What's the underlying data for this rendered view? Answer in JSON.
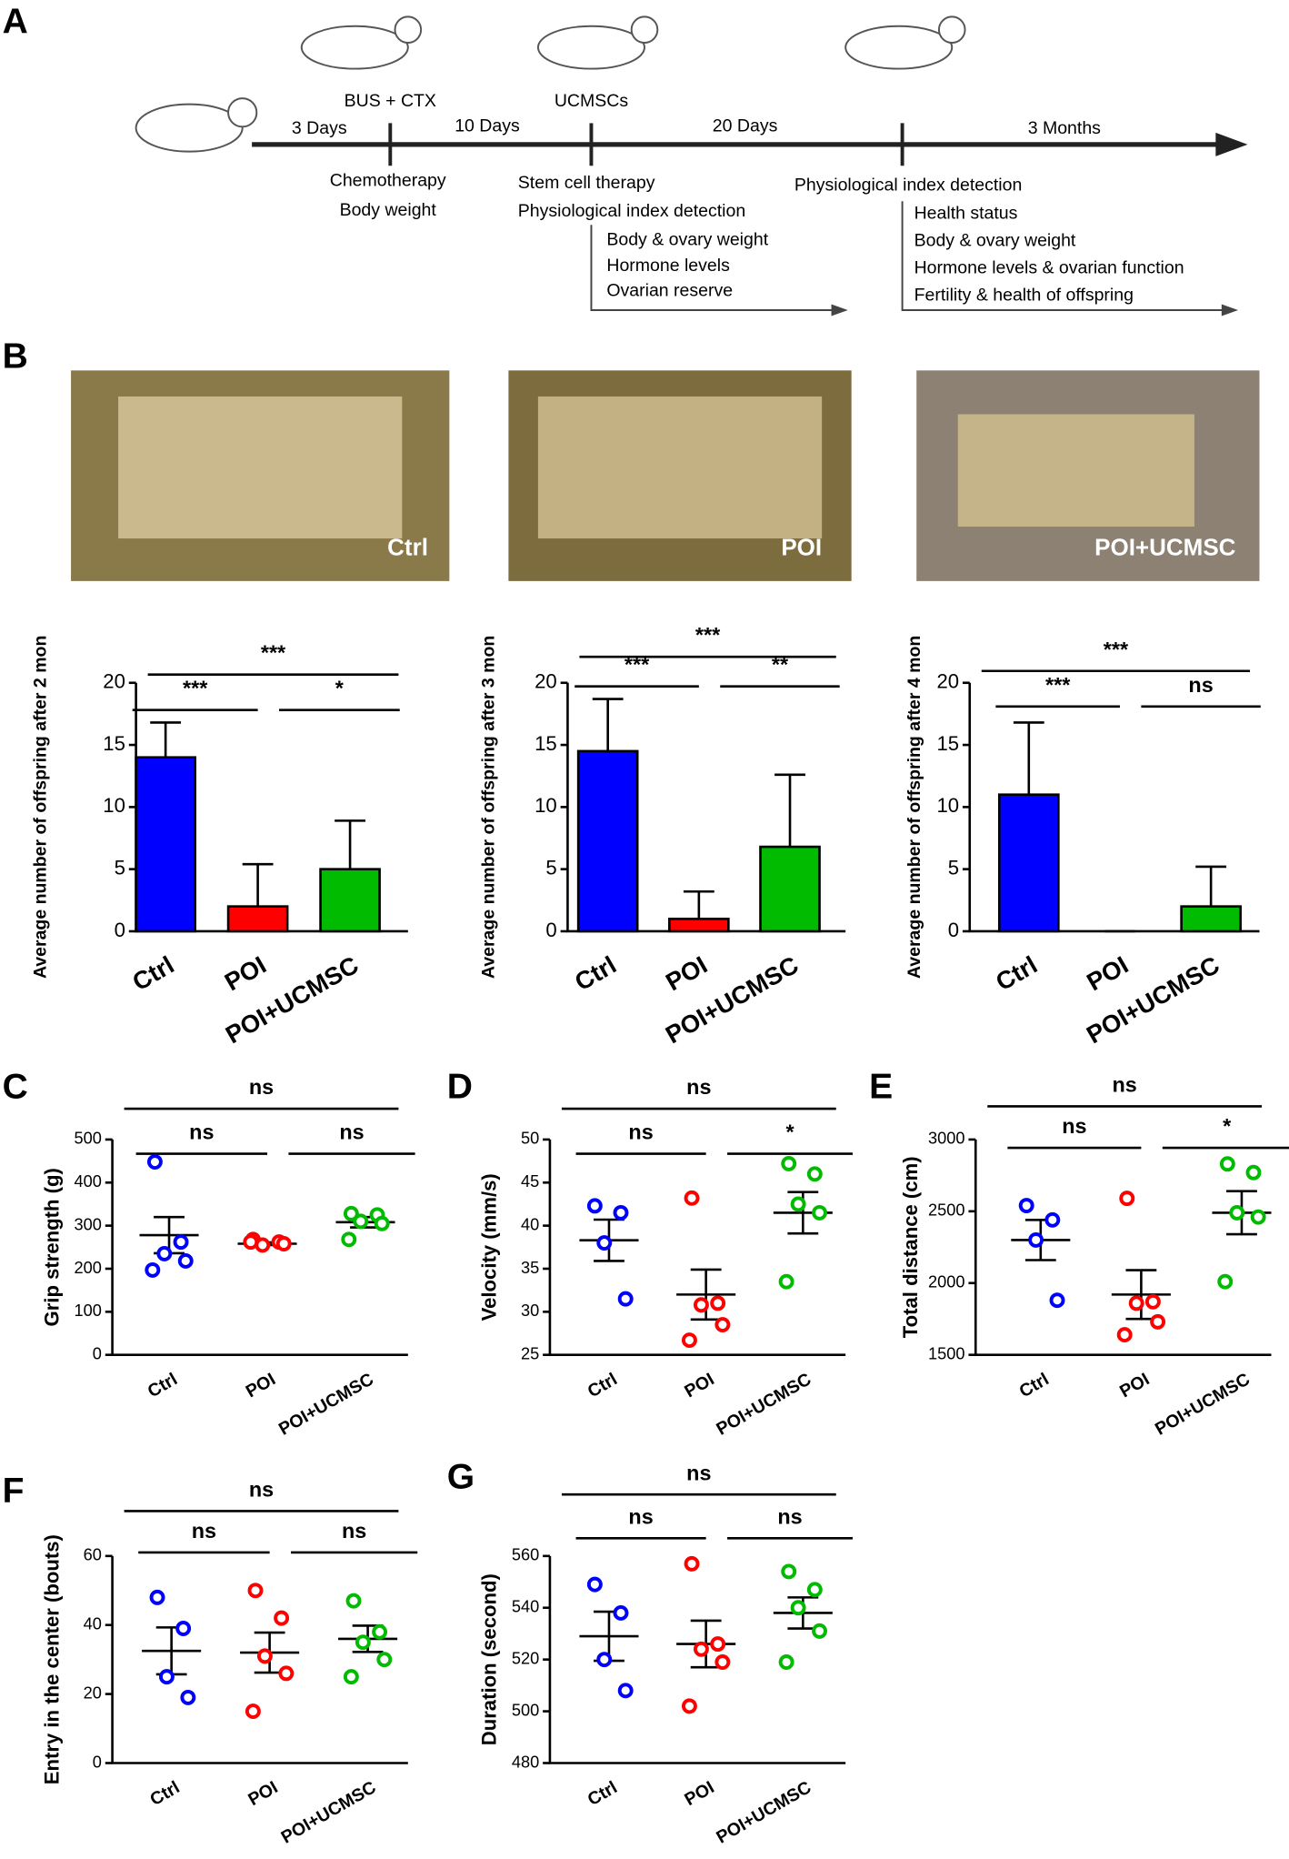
{
  "panel_labels": [
    "A",
    "B",
    "C",
    "D",
    "E",
    "F",
    "G"
  ],
  "timeline": {
    "top_labels": [
      "BUS + CTX",
      "UCMSCs"
    ],
    "intervals": [
      "3 Days",
      "10 Days",
      "20 Days",
      "3 Months"
    ],
    "stage1": [
      "Chemotherapy",
      "Body weight"
    ],
    "stage2": [
      "Stem cell therapy",
      "Physiological index detection"
    ],
    "stage2_items": [
      "Body & ovary weight",
      "Hormone levels",
      "Ovarian reserve"
    ],
    "stage3": [
      "Physiological index detection"
    ],
    "stage3_items": [
      "Health status",
      "Body & ovary weight",
      "Hormone levels & ovarian function",
      "Fertility & health of offspring"
    ]
  },
  "photo_labels": [
    "Ctrl",
    "POI",
    "POI+UCMSC"
  ],
  "chart_data": [
    {
      "type": "bar",
      "ylabel": "Average number of offspring after 2 mon",
      "categories": [
        "Ctrl",
        "POI",
        "POI+UCMSC"
      ],
      "colors": [
        "#0000ff",
        "#ff0000",
        "#00bb00"
      ],
      "values": [
        14,
        2,
        5
      ],
      "errors": [
        2.8,
        3.4,
        3.9
      ],
      "ylim": [
        0,
        20
      ],
      "yticks": [
        0,
        5,
        10,
        15,
        20
      ],
      "significance": [
        "***",
        "***",
        "*"
      ]
    },
    {
      "type": "bar",
      "ylabel": "Average number of offspring after 3 mon",
      "categories": [
        "Ctrl",
        "POI",
        "POI+UCMSC"
      ],
      "colors": [
        "#0000ff",
        "#ff0000",
        "#00bb00"
      ],
      "values": [
        14.5,
        1,
        6.8
      ],
      "errors": [
        4.2,
        2.2,
        5.8
      ],
      "ylim": [
        0,
        20
      ],
      "yticks": [
        0,
        5,
        10,
        15,
        20
      ],
      "significance": [
        "***",
        "***",
        "**"
      ]
    },
    {
      "type": "bar",
      "ylabel": "Average number of offspring after 4 mon",
      "categories": [
        "Ctrl",
        "POI",
        "POI+UCMSC"
      ],
      "colors": [
        "#0000ff",
        "#ff0000",
        "#00bb00"
      ],
      "values": [
        11,
        0,
        2
      ],
      "errors": [
        5.8,
        0,
        3.2
      ],
      "ylim": [
        0,
        20
      ],
      "yticks": [
        0,
        5,
        10,
        15,
        20
      ],
      "significance": [
        "***",
        "***",
        "ns"
      ]
    },
    {
      "type": "strip",
      "ylabel": "Grip strength (g)",
      "categories": [
        "Ctrl",
        "POI",
        "POI+UCMSC"
      ],
      "colors": [
        "#0000ff",
        "#ff0000",
        "#00bb00"
      ],
      "points": [
        [
          448,
          262,
          235,
          218,
          197
        ],
        [
          268,
          262,
          255,
          258,
          262
        ],
        [
          328,
          325,
          310,
          305,
          268
        ]
      ],
      "means": [
        278,
        258,
        308
      ],
      "sems": [
        42,
        3,
        12
      ],
      "ylim": [
        0,
        500
      ],
      "yticks": [
        0,
        100,
        200,
        300,
        400,
        500
      ],
      "significance": [
        "ns",
        "ns",
        "ns"
      ]
    },
    {
      "type": "strip",
      "ylabel": "Velocity (mm/s)",
      "categories": [
        "Ctrl",
        "POI",
        "POI+UCMSC"
      ],
      "colors": [
        "#0000ff",
        "#ff0000",
        "#00bb00"
      ],
      "points": [
        [
          42.3,
          41.5,
          38,
          31.5
        ],
        [
          43.2,
          31,
          30.8,
          28.5,
          26.7
        ],
        [
          47.2,
          46,
          42.5,
          41.5,
          33.5
        ]
      ],
      "means": [
        38.3,
        32,
        41.5
      ],
      "sems": [
        2.4,
        2.9,
        2.4
      ],
      "ylim": [
        25,
        50
      ],
      "yticks": [
        25,
        30,
        35,
        40,
        45,
        50
      ],
      "significance": [
        "ns",
        "ns",
        "*"
      ]
    },
    {
      "type": "strip",
      "ylabel": "Total distance (cm)",
      "categories": [
        "Ctrl",
        "POI",
        "POI+UCMSC"
      ],
      "colors": [
        "#0000ff",
        "#ff0000",
        "#00bb00"
      ],
      "points": [
        [
          2540,
          2440,
          2300,
          1880
        ],
        [
          2590,
          1870,
          1860,
          1730,
          1640
        ],
        [
          2830,
          2770,
          2490,
          2460,
          2010
        ]
      ],
      "means": [
        2300,
        1920,
        2490
      ],
      "sems": [
        140,
        170,
        150
      ],
      "ylim": [
        1500,
        3000
      ],
      "yticks": [
        1500,
        2000,
        2500,
        3000
      ],
      "significance": [
        "ns",
        "ns",
        "*"
      ]
    },
    {
      "type": "strip",
      "ylabel": "Entry in the center (bouts)",
      "categories": [
        "Ctrl",
        "POI",
        "POI+UCMSC"
      ],
      "colors": [
        "#0000ff",
        "#ff0000",
        "#00bb00"
      ],
      "points": [
        [
          48,
          39,
          25,
          19
        ],
        [
          50,
          42,
          31,
          26,
          15
        ],
        [
          47,
          38,
          35,
          30,
          25
        ]
      ],
      "means": [
        32.5,
        32,
        36
      ],
      "sems": [
        6.8,
        5.8,
        3.8
      ],
      "ylim": [
        0,
        60
      ],
      "yticks": [
        0,
        20,
        40,
        60
      ],
      "significance": [
        "ns",
        "ns",
        "ns"
      ]
    },
    {
      "type": "strip",
      "ylabel": "Duration (second)",
      "categories": [
        "Ctrl",
        "POI",
        "POI+UCMSC"
      ],
      "colors": [
        "#0000ff",
        "#ff0000",
        "#00bb00"
      ],
      "points": [
        [
          549,
          538,
          520,
          508
        ],
        [
          557,
          526,
          524,
          519,
          502
        ],
        [
          554,
          547,
          540,
          531,
          519
        ]
      ],
      "means": [
        529,
        526,
        538
      ],
      "sems": [
        9.5,
        9,
        6
      ],
      "ylim": [
        480,
        560
      ],
      "yticks": [
        480,
        500,
        520,
        540,
        560
      ],
      "significance": [
        "ns",
        "ns",
        "ns"
      ]
    }
  ]
}
